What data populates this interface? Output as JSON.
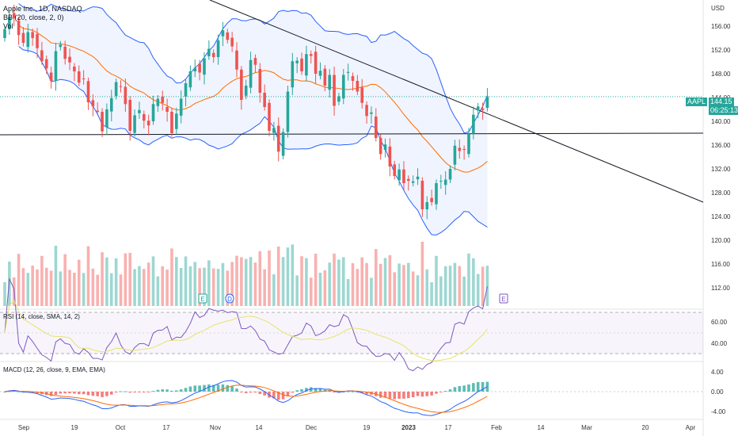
{
  "header": {
    "symbol_line": "Apple Inc., 1D, NASDAQ",
    "bb_label": "BB (20, close, 2, 0)",
    "vol_label": "Vol"
  },
  "price_axis": {
    "currency": "USD",
    "ticks": [
      "156.00",
      "152.00",
      "148.00",
      "144.00",
      "140.00",
      "136.00",
      "132.00",
      "128.00",
      "124.00",
      "120.00",
      "116.00",
      "112.00"
    ]
  },
  "last_price": {
    "ticker": "AAPL",
    "value": "144.15",
    "countdown": "06:25:13"
  },
  "rsi": {
    "label": "RSI (14, close, SMA, 14, 2)",
    "ticks": [
      "60.00",
      "40.00"
    ]
  },
  "macd": {
    "label": "MACD (12, 26, close, 9, EMA, EMA)",
    "ticks": [
      "4.00",
      "0.00",
      "-4.00"
    ]
  },
  "time_axis": [
    "Sep",
    "19",
    "Oct",
    "17",
    "Nov",
    "14",
    "Dec",
    "19",
    "2023",
    "17",
    "Feb",
    "14",
    "Mar",
    "20",
    "Apr"
  ],
  "events": [
    "E",
    "D",
    "E"
  ],
  "colors": {
    "up": "#26a69a",
    "down": "#ef5350",
    "bb_band": "#2962ff",
    "bb_basis": "#ff6d00",
    "rsi_line": "#7e57c2",
    "rsi_ma": "#e8e26a",
    "macd_line": "#2962ff",
    "signal_line": "#ff6d00"
  },
  "chart_data": {
    "type": "candlestick",
    "title": "Apple Inc., 1D, NASDAQ",
    "ylim": [
      110,
      159
    ],
    "close": [
      155.5,
      157.5,
      157.3,
      154.5,
      153.2,
      155.0,
      154.0,
      152.3,
      150.1,
      148.9,
      146.8,
      151.8,
      152.9,
      150.5,
      149.9,
      148.4,
      146.5,
      147.1,
      143.2,
      142.5,
      141.6,
      138.3,
      142.0,
      143.9,
      146.6,
      145.8,
      142.9,
      138.4,
      141.0,
      141.9,
      140.1,
      139.3,
      142.9,
      143.8,
      143.1,
      141.6,
      138.0,
      141.3,
      143.8,
      146.4,
      148.4,
      149.0,
      148.2,
      150.6,
      152.2,
      150.8,
      153.6,
      155.3,
      153.7,
      152.6,
      148.7,
      143.6,
      146.0,
      150.3,
      149.5,
      144.8,
      142.4,
      138.4,
      138.9,
      134.9,
      138.2,
      145.0,
      150.1,
      150.2,
      148.4,
      151.3,
      151.0,
      148.0,
      148.5,
      146.0,
      147.8,
      142.6,
      144.2,
      147.8,
      148.3,
      146.8,
      145.0,
      143.1,
      140.9,
      141.5,
      137.2,
      134.5,
      136.1,
      132.4,
      130.8,
      131.9,
      129.6,
      130.0,
      129.9,
      130.7,
      125.2,
      126.4,
      126.4,
      129.6,
      130.0,
      130.2,
      132.0,
      135.9,
      135.0,
      135.2,
      137.9,
      141.1,
      142.5,
      141.9,
      144.2
    ]
  }
}
